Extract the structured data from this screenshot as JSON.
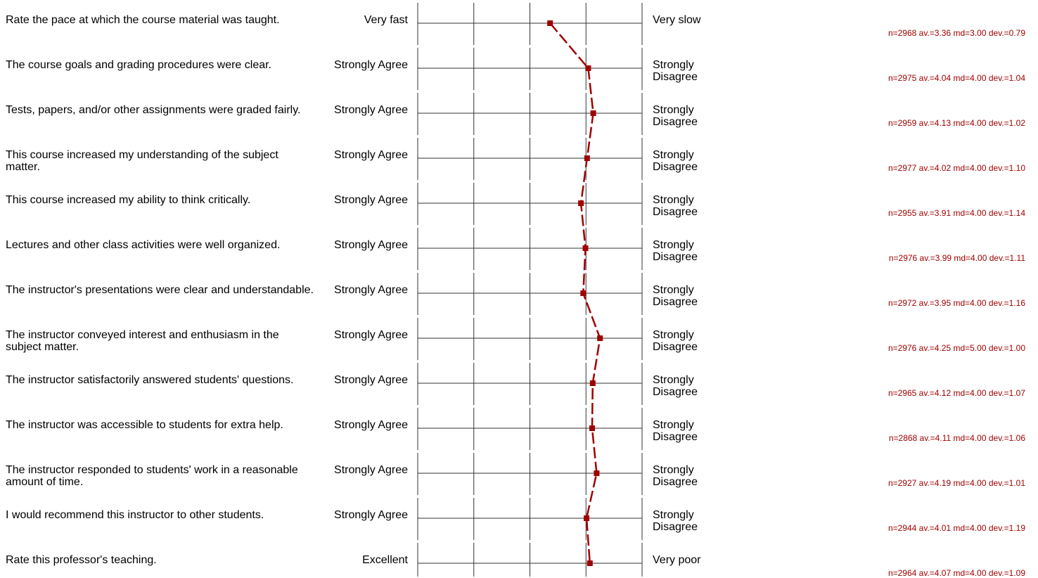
{
  "chart_data": {
    "type": "line",
    "xlim": [
      1,
      5
    ],
    "items": [
      {
        "question": "Rate the pace at which the course material was taught.",
        "left": "Very fast",
        "right": "Very slow",
        "n": 2968,
        "av": 3.36,
        "md": 3.0,
        "dev": 0.79,
        "stats": "n=2968   av.=3.36 md=3.00 dev.=0.79"
      },
      {
        "question": "The course goals and grading procedures were clear.",
        "left": "Strongly Agree",
        "right": "Strongly Disagree",
        "n": 2975,
        "av": 4.04,
        "md": 4.0,
        "dev": 1.04,
        "stats": "n=2975   av.=4.04 md=4.00 dev.=1.04"
      },
      {
        "question": "Tests, papers, and/or other assignments were graded fairly.",
        "left": "Strongly Agree",
        "right": "Strongly Disagree",
        "n": 2959,
        "av": 4.13,
        "md": 4.0,
        "dev": 1.02,
        "stats": "n=2959   av.=4.13 md=4.00 dev.=1.02"
      },
      {
        "question": "This course increased my understanding of the subject matter.",
        "left": "Strongly Agree",
        "right": "Strongly Disagree",
        "n": 2977,
        "av": 4.02,
        "md": 4.0,
        "dev": 1.1,
        "stats": "n=2977   av.=4.02 md=4.00 dev.=1.10"
      },
      {
        "question": "This course increased my ability to think critically.",
        "left": "Strongly Agree",
        "right": "Strongly Disagree",
        "n": 2955,
        "av": 3.91,
        "md": 4.0,
        "dev": 1.14,
        "stats": "n=2955   av.=3.91 md=4.00 dev.=1.14"
      },
      {
        "question": "Lectures and other class activities were well organized.",
        "left": "Strongly Agree",
        "right": "Strongly Disagree",
        "n": 2976,
        "av": 3.99,
        "md": 4.0,
        "dev": 1.11,
        "stats": "n=2976   av.=3.99 md=4.00 dev.=1.11"
      },
      {
        "question": "The instructor's presentations were clear and understandable.",
        "left": "Strongly Agree",
        "right": "Strongly Disagree",
        "n": 2972,
        "av": 3.95,
        "md": 4.0,
        "dev": 1.16,
        "stats": "n=2972   av.=3.95 md=4.00 dev.=1.16"
      },
      {
        "question": "The instructor conveyed interest and enthusiasm in the subject matter.",
        "left": "Strongly Agree",
        "right": "Strongly Disagree",
        "n": 2976,
        "av": 4.25,
        "md": 5.0,
        "dev": 1.0,
        "stats": "n=2976   av.=4.25 md=5.00 dev.=1.00"
      },
      {
        "question": "The instructor satisfactorily answered students' questions.",
        "left": "Strongly Agree",
        "right": "Strongly Disagree",
        "n": 2965,
        "av": 4.12,
        "md": 4.0,
        "dev": 1.07,
        "stats": "n=2965   av.=4.12 md=4.00 dev.=1.07"
      },
      {
        "question": "The instructor was accessible to students for extra help.",
        "left": "Strongly Agree",
        "right": "Strongly Disagree",
        "n": 2868,
        "av": 4.11,
        "md": 4.0,
        "dev": 1.06,
        "stats": "n=2868   av.=4.11 md=4.00 dev.=1.06"
      },
      {
        "question": "The instructor responded to students' work in a reasonable amount of time.",
        "left": "Strongly Agree",
        "right": "Strongly Disagree",
        "n": 2927,
        "av": 4.19,
        "md": 4.0,
        "dev": 1.01,
        "stats": "n=2927   av.=4.19 md=4.00 dev.=1.01"
      },
      {
        "question": "I would recommend this instructor to other students.",
        "left": "Strongly Agree",
        "right": "Strongly Disagree",
        "n": 2944,
        "av": 4.01,
        "md": 4.0,
        "dev": 1.19,
        "stats": "n=2944   av.=4.01 md=4.00 dev.=1.19"
      },
      {
        "question": "Rate this professor's teaching.",
        "left": "Excellent",
        "right": "Very poor",
        "n": 2964,
        "av": 4.07,
        "md": 4.0,
        "dev": 1.09,
        "stats": "n=2964   av.=4.07 md=4.00 dev.=1.09"
      }
    ]
  },
  "colors": {
    "series": "#a00000",
    "grid": "#333333",
    "stats": "#a00000"
  }
}
